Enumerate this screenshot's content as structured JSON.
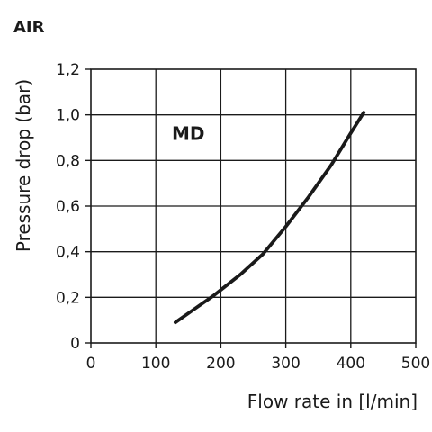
{
  "heading": "AIR",
  "chart_data": {
    "type": "line",
    "xlabel": "Flow rate in [l/min]",
    "ylabel": "Pressure drop (bar)",
    "xlim": [
      0,
      500
    ],
    "ylim": [
      0,
      1.2
    ],
    "x_ticks": [
      0,
      100,
      200,
      300,
      400,
      500
    ],
    "x_tick_labels": [
      "0",
      "100",
      "200",
      "300",
      "400",
      "500"
    ],
    "y_ticks": [
      0,
      0.2,
      0.4,
      0.6,
      0.8,
      1.0,
      1.2
    ],
    "y_tick_labels": [
      "0",
      "0,2",
      "0,4",
      "0,6",
      "0,8",
      "1,0",
      "1,2"
    ],
    "grid": true,
    "annotation": {
      "text": "MD",
      "x": 150,
      "y": 0.89
    },
    "series": [
      {
        "color": "#1a1a1a",
        "x": [
          130,
          160,
          190,
          230,
          265,
          300,
          335,
          370,
          400,
          420
        ],
        "y": [
          0.09,
          0.15,
          0.21,
          0.3,
          0.39,
          0.51,
          0.64,
          0.78,
          0.92,
          1.01
        ]
      }
    ]
  }
}
